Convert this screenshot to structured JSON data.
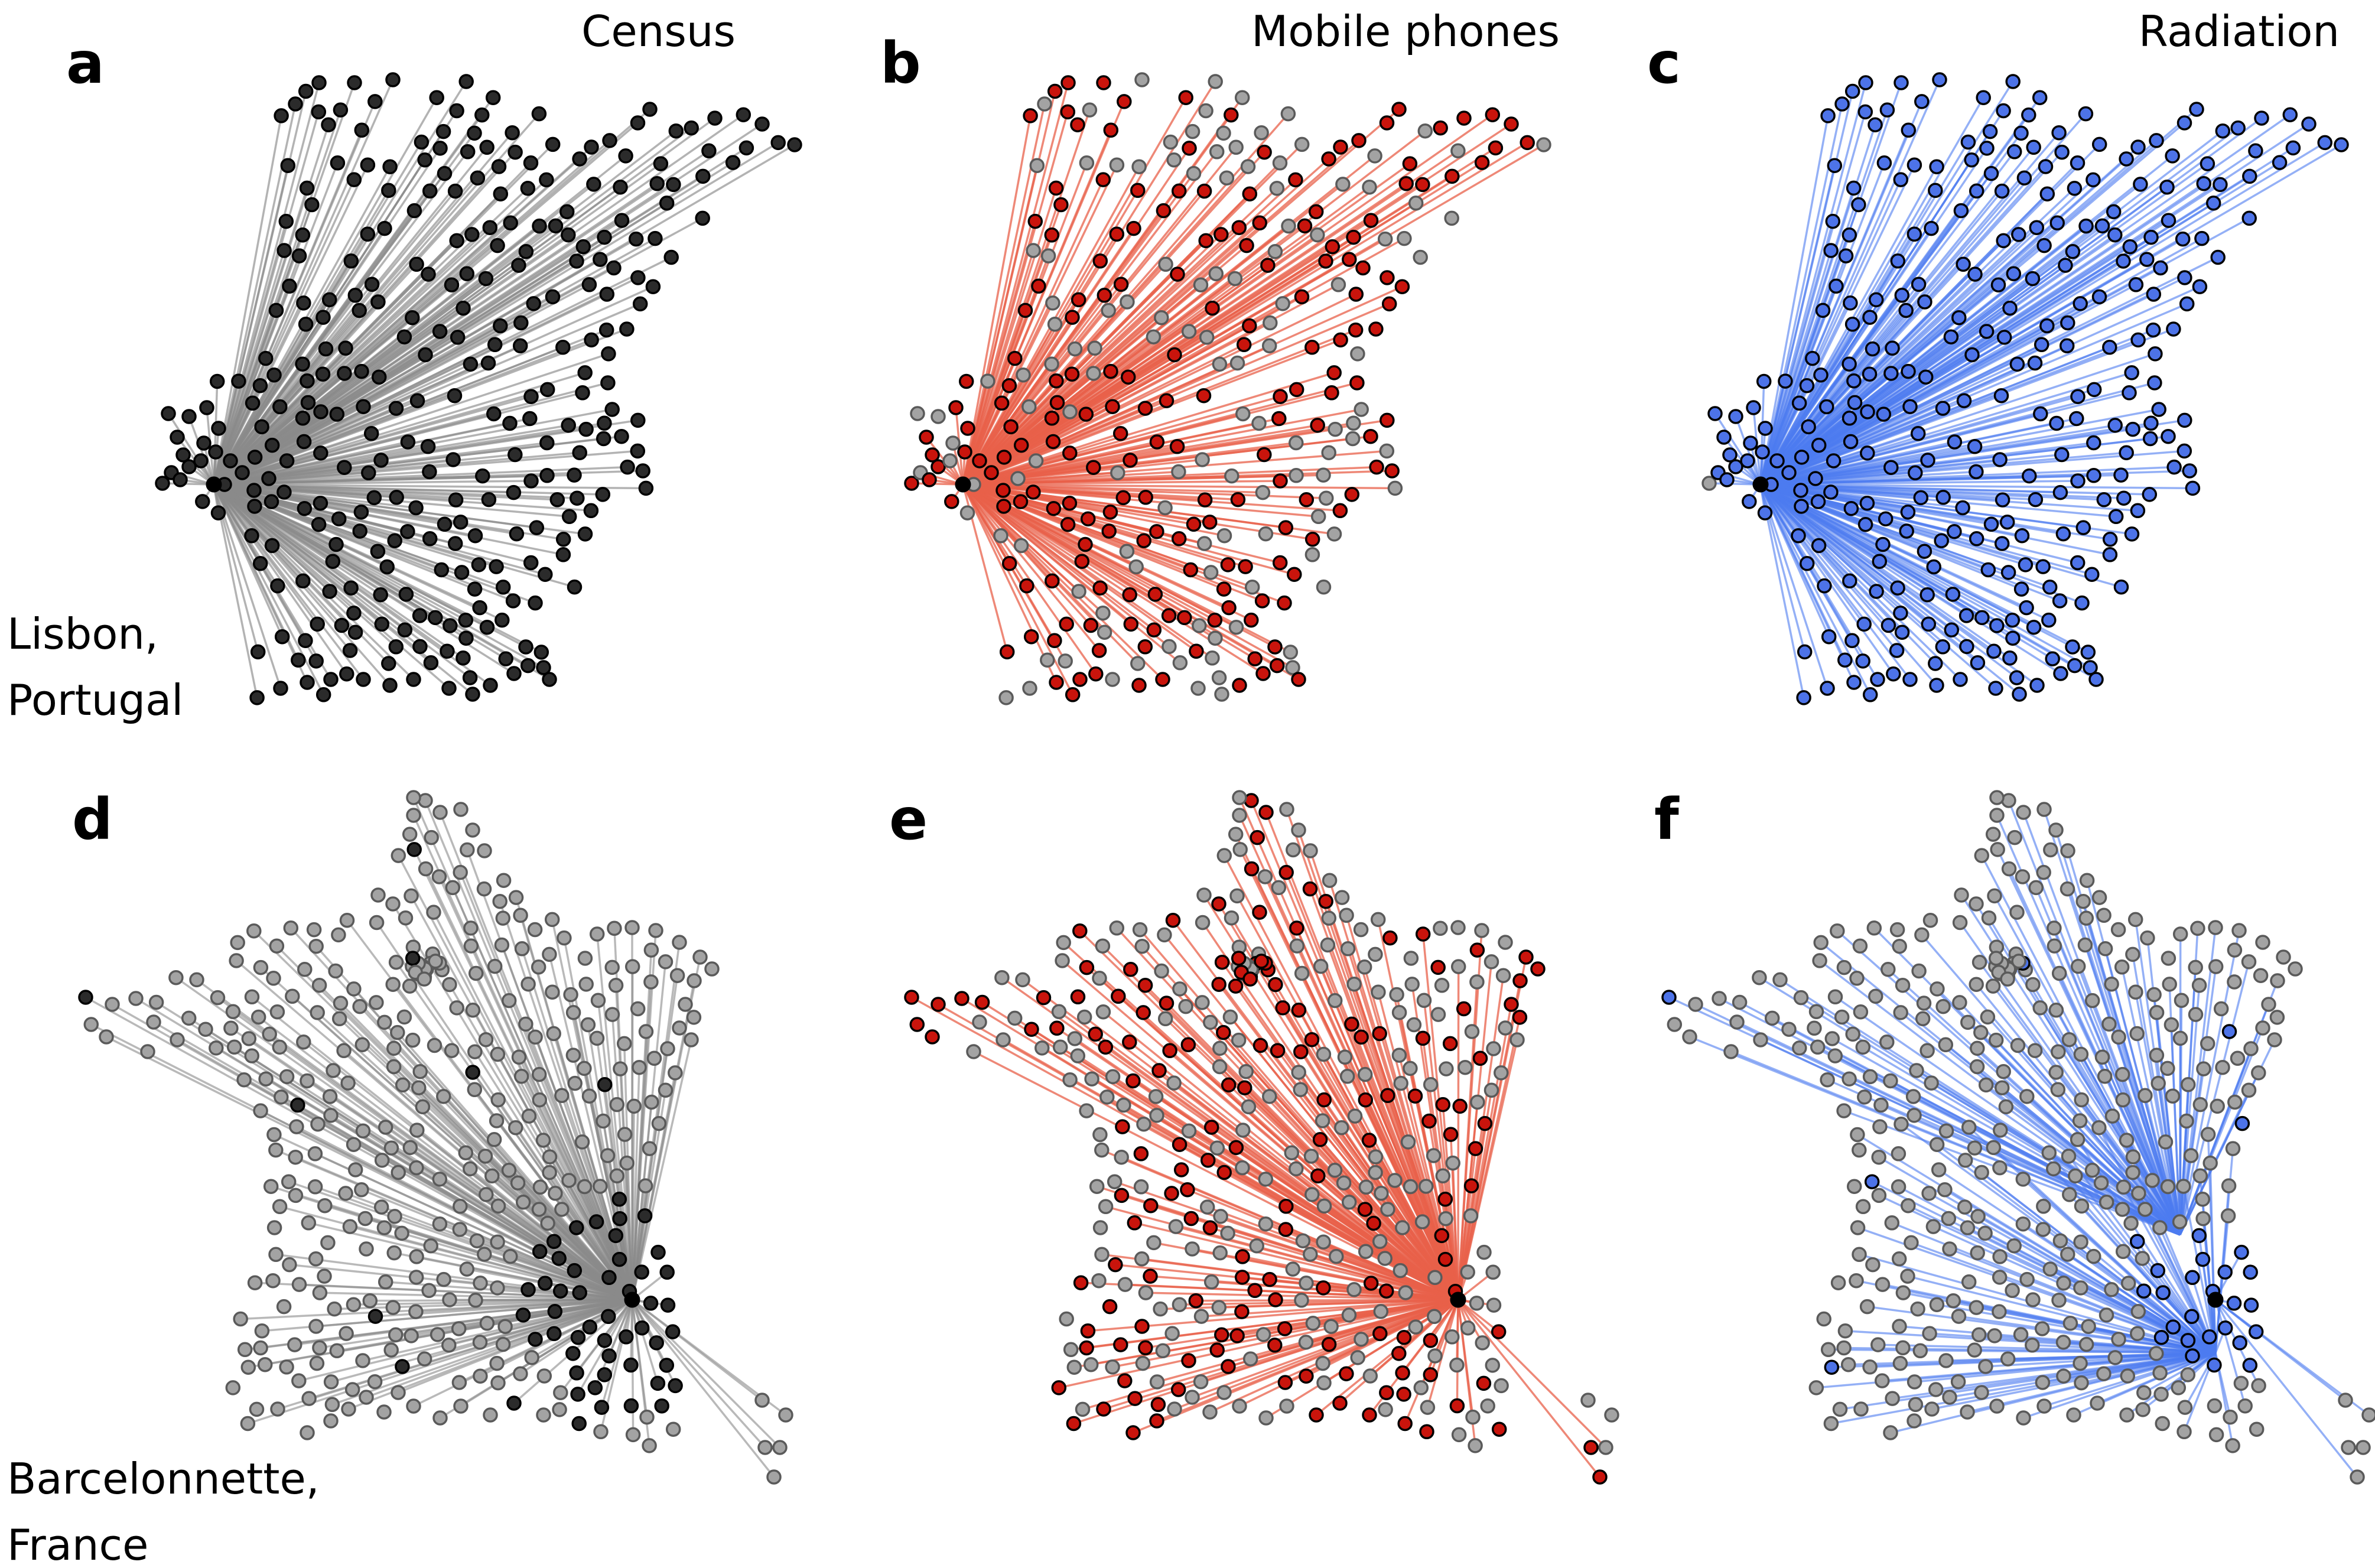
{
  "figure": {
    "panels": [
      {
        "letter": "a",
        "row": "Lisbon, Portugal",
        "source": "Census",
        "title": "Census",
        "place_label": [
          "Lisbon,",
          "Portugal"
        ]
      },
      {
        "letter": "b",
        "row": "Lisbon, Portugal",
        "source": "Mobile phones",
        "title": "Mobile phones"
      },
      {
        "letter": "c",
        "row": "Lisbon, Portugal",
        "source": "Radiation",
        "title": "Radiation"
      },
      {
        "letter": "d",
        "row": "Barcelonnette, France",
        "source": "Census",
        "place_label": [
          "Barcelonnette,",
          "France"
        ]
      },
      {
        "letter": "e",
        "row": "Barcelonnette, France",
        "source": "Mobile phones"
      },
      {
        "letter": "f",
        "row": "Barcelonnette, France",
        "source": "Radiation"
      }
    ]
  },
  "colors": {
    "background": "#ffffff",
    "census_edge": "#8a8a8a",
    "census_node_fill": "#2b2b2b",
    "mobile_edge": "#e8604a",
    "mobile_node_fill": "#c9140c",
    "radiation_edge": "#4d7cf0",
    "radiation_node_fill": "#4d73e8",
    "inactive_node_fill": "#a3a3a3",
    "node_stroke": "#000000",
    "inactive_node_stroke": "#5a5a5a",
    "origin_node": "#000000"
  }
}
